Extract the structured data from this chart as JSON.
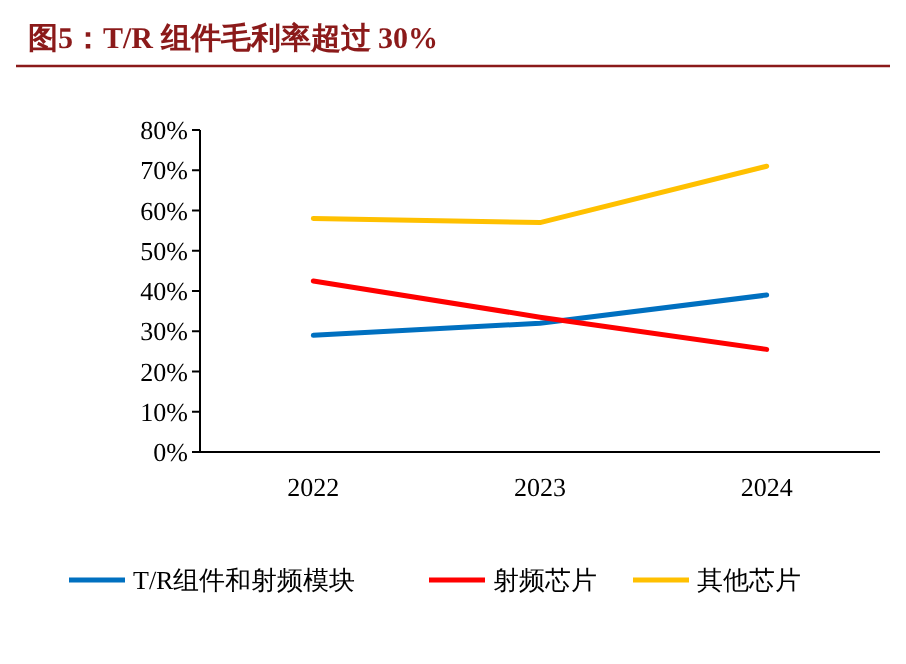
{
  "chart_data": {
    "type": "line",
    "title": "图5：T/R 组件毛利率超过 30%",
    "categories": [
      "2022",
      "2023",
      "2024"
    ],
    "series": [
      {
        "name": "T/R组件和射频模块",
        "color": "#0070c0",
        "values": [
          29,
          32,
          39
        ]
      },
      {
        "name": "射频芯片",
        "color": "#ff0000",
        "values": [
          42.5,
          33.5,
          25.5
        ]
      },
      {
        "name": "其他芯片",
        "color": "#ffc000",
        "values": [
          58,
          57,
          71
        ]
      }
    ],
    "ylim": [
      0,
      80
    ],
    "yticks": [
      {
        "value": 0,
        "label": "0%"
      },
      {
        "value": 10,
        "label": "10%"
      },
      {
        "value": 20,
        "label": "20%"
      },
      {
        "value": 30,
        "label": "30%"
      },
      {
        "value": 40,
        "label": "40%"
      },
      {
        "value": 50,
        "label": "50%"
      },
      {
        "value": 60,
        "label": "60%"
      },
      {
        "value": 70,
        "label": "70%"
      },
      {
        "value": 80,
        "label": "80%"
      }
    ],
    "grid": false,
    "legend": "bottom",
    "marker": "none",
    "line_style": "solid"
  }
}
